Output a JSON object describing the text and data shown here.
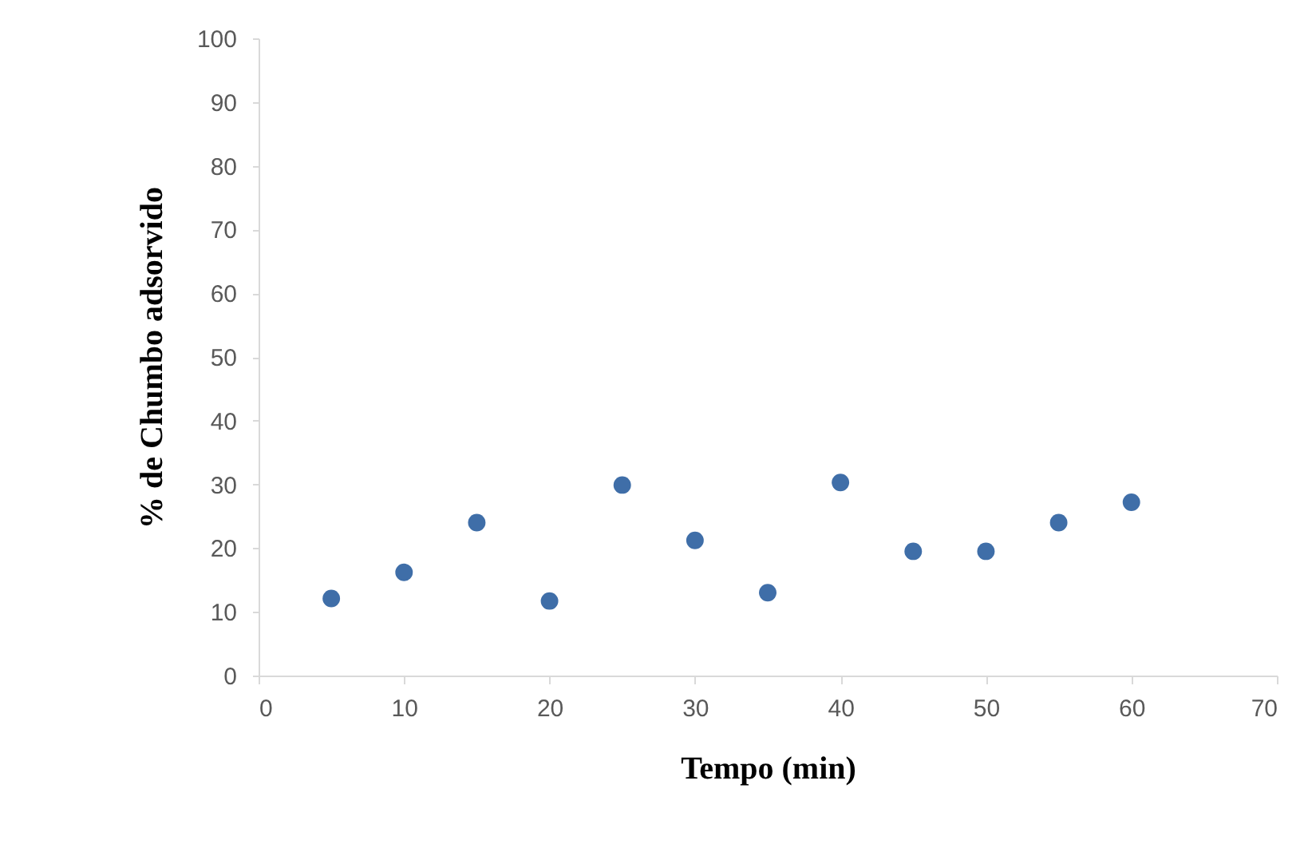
{
  "chart_data": {
    "type": "scatter",
    "xlabel": "Tempo (min)",
    "ylabel": "% de Chumbo adsorvido",
    "x": [
      5,
      10,
      15,
      20,
      25,
      30,
      35,
      40,
      45,
      50,
      55,
      60
    ],
    "series": [
      {
        "color": "#3f6ea8",
        "values": [
          12.1,
          16.2,
          24,
          11.7,
          29.9,
          21.2,
          13,
          30.3,
          19.5,
          19.5,
          24,
          27.2
        ]
      }
    ],
    "xlim": [
      0,
      70
    ],
    "xticks": [
      0,
      10,
      20,
      30,
      40,
      50,
      60,
      70
    ],
    "ylim": [
      0,
      100
    ],
    "yticks": [
      0,
      10,
      20,
      30,
      40,
      50,
      60,
      70,
      80,
      90,
      100
    ],
    "grid": false,
    "legend": false,
    "marker": "circle"
  }
}
